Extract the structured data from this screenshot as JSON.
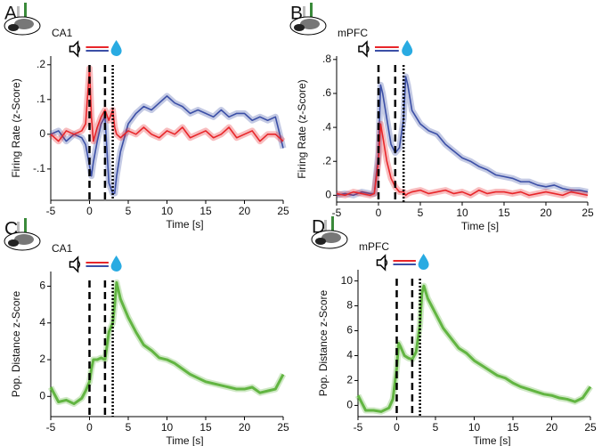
{
  "chart_data": [
    {
      "type": "line",
      "panel": "A",
      "region": "CA1",
      "ylabel": "Firing Rate (z-Score)",
      "xlabel": "Time [s]",
      "xlim": [
        -5,
        25
      ],
      "xticks": [
        -5,
        0,
        5,
        10,
        15,
        20,
        25
      ],
      "ylim": [
        -0.19,
        0.225
      ],
      "yticks": [
        {
          "value": -0.1,
          "label": "-.1"
        },
        0,
        {
          "value": 0.1,
          "label": ".1"
        },
        {
          "value": 0.2,
          "label": ".2"
        }
      ],
      "vlines": [
        {
          "x": 0,
          "style": "dashed"
        },
        {
          "x": 2,
          "style": "dashed"
        },
        {
          "x": 3,
          "style": "dotted"
        }
      ],
      "x": [
        -5,
        -4,
        -3,
        -2,
        -1,
        -0.5,
        0,
        0.25,
        0.5,
        1,
        1.5,
        2,
        2.5,
        3,
        3.25,
        3.5,
        4,
        5,
        6,
        7,
        8,
        9,
        10,
        11,
        12,
        13,
        14,
        15,
        16,
        17,
        18,
        19,
        20,
        21,
        22,
        23,
        24,
        25
      ],
      "series": [
        {
          "color": "#3b4fa6",
          "values": [
            0.0,
            0.01,
            -0.02,
            0.0,
            -0.01,
            -0.03,
            -0.09,
            -0.12,
            -0.08,
            -0.02,
            0.03,
            0.05,
            -0.14,
            -0.17,
            -0.17,
            -0.12,
            -0.05,
            0.03,
            0.06,
            0.08,
            0.07,
            0.09,
            0.11,
            0.09,
            0.08,
            0.06,
            0.07,
            0.06,
            0.05,
            0.07,
            0.05,
            0.06,
            0.06,
            0.04,
            0.05,
            0.04,
            0.05,
            -0.04
          ]
        },
        {
          "color": "#e8262a",
          "values": [
            0.0,
            -0.02,
            0.01,
            0.0,
            0.01,
            0.03,
            0.19,
            0.05,
            -0.02,
            0.02,
            0.05,
            0.07,
            0.04,
            0.07,
            0.02,
            0.0,
            -0.01,
            0.01,
            0.0,
            0.02,
            0.0,
            -0.01,
            0.01,
            0.0,
            0.02,
            -0.01,
            0.0,
            0.01,
            -0.01,
            0.0,
            0.02,
            -0.01,
            0.0,
            0.01,
            -0.02,
            0.0,
            0.0,
            -0.02
          ]
        }
      ]
    },
    {
      "type": "line",
      "panel": "B",
      "region": "mPFC",
      "ylabel": "Firing Rate (z-Score)",
      "xlabel": "Time [s]",
      "xlim": [
        -5,
        25
      ],
      "xticks": [
        -5,
        0,
        5,
        10,
        15,
        20,
        25
      ],
      "ylim": [
        -0.04,
        0.82
      ],
      "yticks": [
        0,
        {
          "value": 0.2,
          "label": ".2"
        },
        {
          "value": 0.4,
          "label": ".4"
        },
        {
          "value": 0.6,
          "label": ".6"
        },
        {
          "value": 0.8,
          "label": ".8"
        }
      ],
      "vlines": [
        {
          "x": 0,
          "style": "dashed"
        },
        {
          "x": 2,
          "style": "dashed"
        },
        {
          "x": 3,
          "style": "dotted"
        }
      ],
      "x": [
        -5,
        -4,
        -3,
        -2,
        -1,
        -0.5,
        0,
        0.25,
        0.5,
        1,
        1.5,
        2,
        2.5,
        3,
        3.25,
        3.5,
        4,
        5,
        6,
        7,
        8,
        9,
        10,
        11,
        12,
        13,
        14,
        15,
        16,
        17,
        18,
        19,
        20,
        21,
        22,
        23,
        24,
        25
      ],
      "series": [
        {
          "color": "#3b4fa6",
          "values": [
            0.0,
            0.01,
            0.0,
            0.02,
            0.01,
            0.01,
            0.25,
            0.65,
            0.6,
            0.45,
            0.3,
            0.25,
            0.28,
            0.45,
            0.7,
            0.65,
            0.5,
            0.42,
            0.38,
            0.36,
            0.3,
            0.26,
            0.22,
            0.2,
            0.17,
            0.15,
            0.12,
            0.11,
            0.1,
            0.08,
            0.08,
            0.06,
            0.05,
            0.06,
            0.04,
            0.03,
            0.03,
            0.02
          ]
        },
        {
          "color": "#e8262a",
          "values": [
            0.01,
            0.0,
            0.02,
            0.01,
            0.0,
            0.01,
            0.2,
            0.42,
            0.35,
            0.2,
            0.1,
            0.05,
            0.02,
            0.02,
            0.0,
            0.01,
            0.02,
            0.03,
            0.01,
            0.02,
            0.03,
            0.01,
            0.02,
            0.0,
            0.03,
            0.01,
            0.02,
            0.02,
            0.01,
            0.02,
            0.0,
            0.01,
            0.02,
            0.01,
            0.0,
            0.02,
            0.01,
            0.0
          ]
        }
      ]
    },
    {
      "type": "line",
      "panel": "C",
      "region": "CA1",
      "ylabel": "Pop. Distance z-Score",
      "xlabel": "Time [s]",
      "xlim": [
        -5,
        25
      ],
      "xticks": [
        -5,
        0,
        5,
        10,
        15,
        20,
        25
      ],
      "ylim": [
        -1.1,
        6.8
      ],
      "yticks": [
        0,
        2,
        4,
        6
      ],
      "vlines": [
        {
          "x": 0,
          "style": "dashed"
        },
        {
          "x": 2,
          "style": "dashed"
        },
        {
          "x": 3,
          "style": "dotted"
        }
      ],
      "x": [
        -5,
        -4,
        -3,
        -2,
        -1,
        -0.5,
        0,
        0.25,
        0.5,
        1,
        1.5,
        2,
        2.5,
        3,
        3.25,
        3.5,
        4,
        5,
        6,
        7,
        8,
        9,
        10,
        11,
        12,
        13,
        14,
        15,
        16,
        17,
        18,
        19,
        20,
        21,
        22,
        23,
        24,
        25
      ],
      "series": [
        {
          "color": "#62b542",
          "values": [
            0.5,
            -0.3,
            -0.2,
            -0.4,
            -0.1,
            0.3,
            0.8,
            1.5,
            2.0,
            2.0,
            2.1,
            2.0,
            3.5,
            4.0,
            5.0,
            6.2,
            5.3,
            4.3,
            3.5,
            2.8,
            2.5,
            2.1,
            2.0,
            1.8,
            1.5,
            1.2,
            1.0,
            0.8,
            0.7,
            0.6,
            0.5,
            0.4,
            0.4,
            0.5,
            0.2,
            0.3,
            0.4,
            1.2
          ]
        }
      ]
    },
    {
      "type": "line",
      "panel": "D",
      "region": "mPFC",
      "ylabel": "Pop. Distance z-Score",
      "xlabel": "Time [s]",
      "xlim": [
        -5,
        25
      ],
      "xticks": [
        -5,
        0,
        5,
        10,
        15,
        20,
        25
      ],
      "ylim": [
        -0.9,
        10.9
      ],
      "yticks": [
        0,
        2,
        4,
        6,
        8,
        10
      ],
      "vlines": [
        {
          "x": 0,
          "style": "dashed"
        },
        {
          "x": 2,
          "style": "dashed"
        },
        {
          "x": 3,
          "style": "dotted"
        }
      ],
      "x": [
        -5,
        -4,
        -3,
        -2,
        -1,
        -0.5,
        0,
        0.25,
        0.5,
        1,
        1.5,
        2,
        2.5,
        3,
        3.25,
        3.5,
        4,
        5,
        6,
        7,
        8,
        9,
        10,
        11,
        12,
        13,
        14,
        15,
        16,
        17,
        18,
        19,
        20,
        21,
        22,
        23,
        24,
        25
      ],
      "series": [
        {
          "color": "#62b542",
          "values": [
            0.8,
            -0.4,
            -0.4,
            -0.5,
            -0.2,
            0.5,
            3.0,
            5.0,
            4.7,
            4.0,
            3.8,
            3.7,
            4.3,
            6.5,
            9.0,
            9.6,
            8.6,
            7.4,
            6.2,
            5.4,
            4.6,
            4.2,
            3.6,
            3.2,
            2.8,
            2.4,
            2.2,
            1.8,
            1.5,
            1.3,
            1.1,
            0.9,
            0.8,
            0.6,
            0.5,
            0.3,
            0.6,
            1.5
          ]
        }
      ]
    }
  ]
}
